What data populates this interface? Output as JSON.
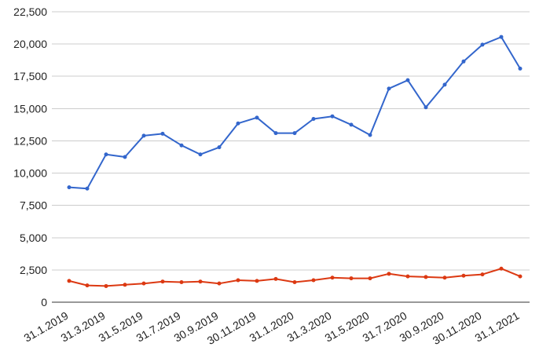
{
  "chart_data": {
    "type": "line",
    "title": "",
    "xlabel": "",
    "ylabel": "",
    "categories": [
      "31.1.2019",
      "28.2.2019",
      "31.3.2019",
      "30.4.2019",
      "31.5.2019",
      "30.6.2019",
      "31.7.2019",
      "31.8.2019",
      "30.9.2019",
      "31.10.2019",
      "30.11.2019",
      "31.12.2019",
      "31.1.2020",
      "29.2.2020",
      "31.3.2020",
      "30.4.2020",
      "31.5.2020",
      "30.6.2020",
      "31.7.2020",
      "31.8.2020",
      "30.9.2020",
      "31.10.2020",
      "30.11.2020",
      "31.12.2020",
      "31.1.2021"
    ],
    "visible_x_tick_labels": [
      "31.1.2019",
      "31.3.2019",
      "31.5.2019",
      "31.7.2019",
      "30.9.2019",
      "30.11.2019",
      "31.1.2020",
      "31.3.2020",
      "31.5.2020",
      "31.7.2020",
      "30.9.2020",
      "30.11.2020",
      "31.1.2021"
    ],
    "y_ticks": [
      0,
      2500,
      5000,
      7500,
      10000,
      12500,
      15000,
      17500,
      20000,
      22500
    ],
    "y_tick_labels": [
      "0",
      "2,500",
      "5,000",
      "7,500",
      "10,000",
      "12,500",
      "15,000",
      "17,500",
      "20,000",
      "22,500"
    ],
    "ylim": [
      0,
      22500
    ],
    "grid": true,
    "legend": "none",
    "series": [
      {
        "color": "#3366cc",
        "values": [
          8900,
          8800,
          11450,
          11250,
          12900,
          13050,
          12150,
          11450,
          12000,
          13850,
          14300,
          13100,
          13100,
          14200,
          14400,
          13750,
          12950,
          16550,
          17200,
          15100,
          16850,
          18650,
          19950,
          20550,
          18100
        ]
      },
      {
        "color": "#dc3912",
        "values": [
          1650,
          1300,
          1250,
          1350,
          1450,
          1600,
          1550,
          1600,
          1450,
          1700,
          1650,
          1800,
          1550,
          1700,
          1900,
          1850,
          1850,
          2200,
          2000,
          1950,
          1900,
          2050,
          2150,
          2600,
          2000
        ]
      }
    ],
    "colors": {
      "gridline": "#cccccc",
      "axis_line": "#333333",
      "text": "#222222",
      "background": "#ffffff"
    }
  }
}
